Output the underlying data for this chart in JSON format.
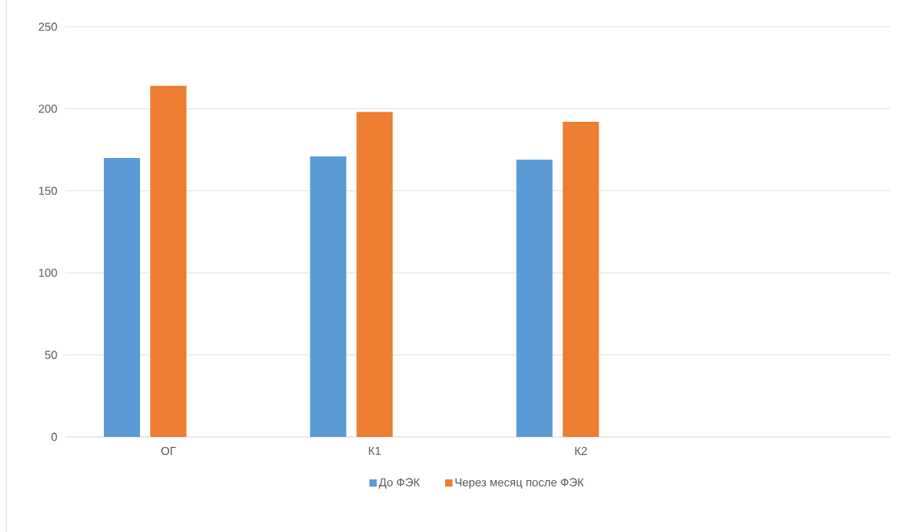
{
  "chart_data": {
    "type": "bar",
    "categories": [
      "ОГ",
      "К1",
      "К2",
      null
    ],
    "series": [
      {
        "name": "До ФЭК",
        "color": "#5b9bd5",
        "values": [
          170,
          171,
          169,
          null
        ]
      },
      {
        "name": "Через месяц после ФЭК",
        "color": "#ed7d31",
        "values": [
          214,
          198,
          192,
          null
        ]
      }
    ],
    "ylim": [
      0,
      250
    ],
    "yticks": [
      0,
      50,
      100,
      150,
      200,
      250
    ],
    "grid": "y",
    "legend": "bottom"
  }
}
